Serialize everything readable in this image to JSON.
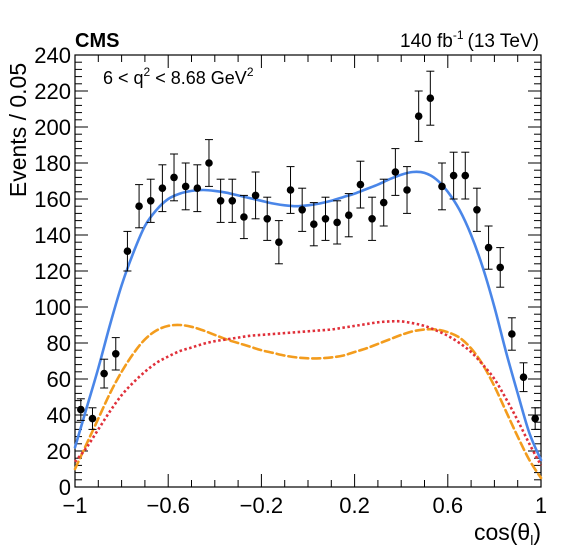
{
  "header": {
    "experiment": "CMS",
    "lumi_value": "140 fb",
    "lumi_exp": "-1",
    "energy": "(13 TeV)"
  },
  "annotation": {
    "pre": "6 < q",
    "sup": "2",
    "mid": " < 8.68 GeV",
    "sup2": "2"
  },
  "chart_data": {
    "type": "scatter",
    "title": "",
    "xlabel": "cos(θ_l)",
    "ylabel": "Events / 0.05",
    "xlim": [
      -1,
      1
    ],
    "ylim": [
      0,
      240
    ],
    "xticks": [
      "−1",
      "−0.6",
      "−0.2",
      "0.2",
      "0.6",
      "1"
    ],
    "xtick_values": [
      -1,
      -0.6,
      -0.2,
      0.2,
      0.6,
      1
    ],
    "yticks": [
      "0",
      "20",
      "40",
      "60",
      "80",
      "100",
      "120",
      "140",
      "160",
      "180",
      "200",
      "220",
      "240"
    ],
    "ytick_values": [
      0,
      20,
      40,
      60,
      80,
      100,
      120,
      140,
      160,
      180,
      200,
      220,
      240
    ],
    "grid": false,
    "series": [
      {
        "kind": "data_points",
        "style": "black markers with error bars",
        "x": [
          -0.975,
          -0.925,
          -0.875,
          -0.825,
          -0.775,
          -0.725,
          -0.675,
          -0.625,
          -0.575,
          -0.525,
          -0.475,
          -0.425,
          -0.375,
          -0.325,
          -0.275,
          -0.225,
          -0.175,
          -0.125,
          -0.075,
          -0.025,
          0.025,
          0.075,
          0.125,
          0.175,
          0.225,
          0.275,
          0.325,
          0.375,
          0.425,
          0.475,
          0.525,
          0.575,
          0.625,
          0.675,
          0.725,
          0.775,
          0.825,
          0.875,
          0.925,
          0.975
        ],
        "y": [
          43,
          38,
          63,
          74,
          131,
          156,
          159,
          166,
          172,
          167,
          166,
          180,
          159,
          159,
          150,
          162,
          149,
          136,
          165,
          154,
          146,
          149,
          147,
          151,
          168,
          149,
          158,
          175,
          165,
          206,
          216,
          167,
          173,
          173,
          154,
          133,
          122,
          85,
          61,
          38
        ],
        "yerr": [
          6,
          6,
          8,
          9,
          11,
          12,
          12,
          13,
          13,
          13,
          13,
          13,
          12,
          12,
          12,
          13,
          12,
          12,
          13,
          12,
          12,
          12,
          12,
          12,
          13,
          12,
          13,
          13,
          13,
          14,
          15,
          13,
          13,
          13,
          12,
          12,
          11,
          9,
          8,
          6
        ]
      },
      {
        "kind": "total_fit",
        "style": "solid",
        "color": "#4a86e8",
        "x": [
          -1,
          -0.95,
          -0.9,
          -0.85,
          -0.8,
          -0.75,
          -0.7,
          -0.65,
          -0.6,
          -0.55,
          -0.5,
          -0.45,
          -0.4,
          -0.35,
          -0.3,
          -0.25,
          -0.2,
          -0.15,
          -0.1,
          -0.05,
          0,
          0.05,
          0.1,
          0.15,
          0.2,
          0.25,
          0.3,
          0.35,
          0.4,
          0.45,
          0.5,
          0.55,
          0.6,
          0.65,
          0.7,
          0.75,
          0.8,
          0.85,
          0.9,
          0.95,
          1
        ],
        "y": [
          22,
          44,
          66,
          90,
          112,
          130,
          145,
          154,
          160,
          163,
          164.5,
          165,
          164.5,
          163.5,
          162,
          160.5,
          159,
          157.5,
          156.5,
          156,
          156.5,
          157.5,
          159,
          161,
          163,
          165.5,
          168,
          171,
          173.5,
          175,
          174.5,
          171,
          164,
          154,
          140,
          122,
          100,
          75,
          52,
          30,
          15
        ]
      },
      {
        "kind": "component_orange",
        "style": "dashed",
        "color": "#f39c1d",
        "x": [
          -1,
          -0.95,
          -0.9,
          -0.85,
          -0.8,
          -0.75,
          -0.7,
          -0.65,
          -0.6,
          -0.55,
          -0.5,
          -0.45,
          -0.4,
          -0.35,
          -0.3,
          -0.25,
          -0.2,
          -0.15,
          -0.1,
          -0.05,
          0,
          0.05,
          0.1,
          0.15,
          0.2,
          0.25,
          0.3,
          0.35,
          0.4,
          0.45,
          0.5,
          0.55,
          0.6,
          0.65,
          0.7,
          0.75,
          0.8,
          0.85,
          0.9,
          0.95,
          1
        ],
        "y": [
          10,
          24,
          38,
          52,
          64,
          74,
          82,
          87,
          89.5,
          90,
          89,
          87,
          84.5,
          82,
          80,
          78,
          76,
          74.5,
          73,
          72,
          71.5,
          71.5,
          72,
          73,
          75,
          77,
          79.5,
          82,
          84.5,
          86.5,
          87.5,
          87.5,
          86,
          83,
          77,
          68,
          56,
          42,
          28,
          15,
          5
        ]
      },
      {
        "kind": "component_red",
        "style": "dotted",
        "color": "#e0303a",
        "x": [
          -1,
          -0.95,
          -0.9,
          -0.85,
          -0.8,
          -0.75,
          -0.7,
          -0.65,
          -0.6,
          -0.55,
          -0.5,
          -0.45,
          -0.4,
          -0.35,
          -0.3,
          -0.25,
          -0.2,
          -0.15,
          -0.1,
          -0.05,
          0,
          0.05,
          0.1,
          0.15,
          0.2,
          0.25,
          0.3,
          0.35,
          0.4,
          0.45,
          0.5,
          0.55,
          0.6,
          0.65,
          0.7,
          0.75,
          0.8,
          0.85,
          0.9,
          0.95,
          1
        ],
        "y": [
          14,
          22,
          32,
          42,
          51,
          58,
          64,
          69,
          72.5,
          75.5,
          77.5,
          79.5,
          81,
          82,
          83,
          84,
          84.5,
          85,
          85.5,
          86,
          86.5,
          87,
          87.5,
          88.5,
          89.5,
          90.5,
          91.5,
          92,
          92,
          91,
          89.5,
          87,
          84,
          80,
          75,
          68,
          60,
          49,
          37,
          24,
          12
        ]
      }
    ]
  }
}
